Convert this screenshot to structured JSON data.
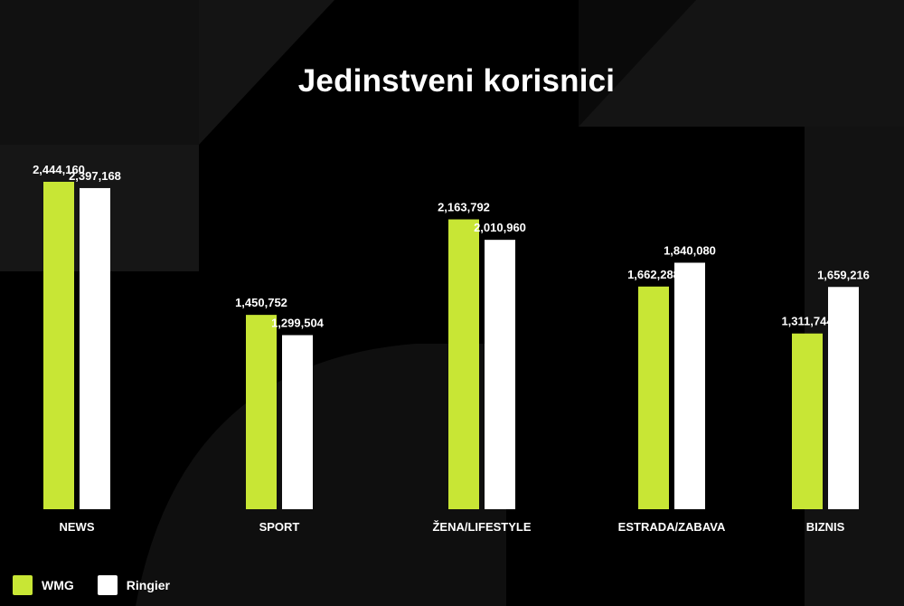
{
  "chart_data": {
    "type": "bar",
    "title": "Jedinstveni korisnici",
    "categories": [
      "NEWS",
      "SPORT",
      "ŽENA/LIFESTYLE",
      "ESTRADA/ZABAVA",
      "BIZNIS"
    ],
    "series": [
      {
        "name": "WMG",
        "color": "#c8e635",
        "values": [
          2444160,
          1450752,
          2163792,
          1662288,
          1311744
        ],
        "labels": [
          "2,444,160",
          "1,450,752",
          "2,163,792",
          "1,662,288",
          "1,311,744"
        ]
      },
      {
        "name": "Ringier",
        "color": "#ffffff",
        "values": [
          2397168,
          1299504,
          2010960,
          1840080,
          1659216
        ],
        "labels": [
          "2,397,168",
          "1,299,504",
          "2,010,960",
          "1,840,080",
          "1,659,216"
        ]
      }
    ],
    "ylim": [
      0,
      2444160
    ],
    "grid": false,
    "legend_position": "bottom-left",
    "background": "#000000"
  }
}
